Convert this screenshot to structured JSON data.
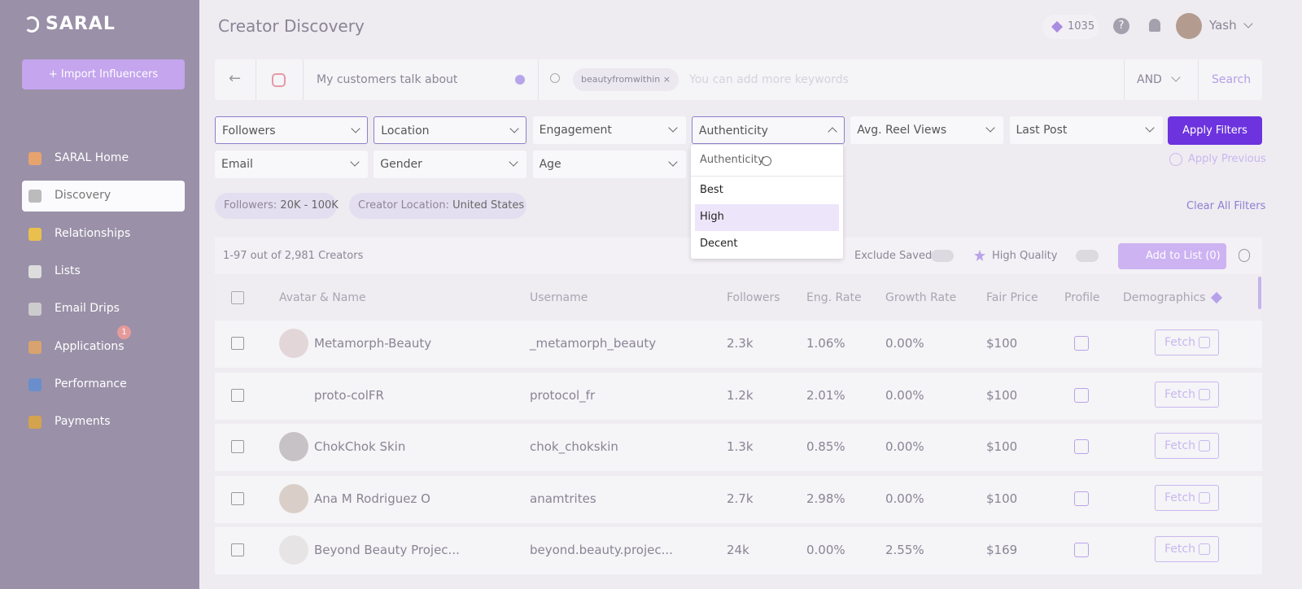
{
  "brand": "SARAL",
  "sidebar": {
    "import_button": "Import Influencers",
    "nav": [
      {
        "label": "SARAL Home"
      },
      {
        "label": "Discovery"
      },
      {
        "label": "Relationships"
      },
      {
        "label": "Lists"
      },
      {
        "label": "Email Drips"
      },
      {
        "label": "Applications",
        "badge": "1"
      },
      {
        "label": "Performance"
      },
      {
        "label": "Payments"
      }
    ]
  },
  "header": {
    "title": "Creator Discovery",
    "credits": "1035",
    "user": "Yash"
  },
  "search": {
    "placeholder": "My customers talk about",
    "keyword": "beautyfromwithin",
    "keyword_placeholder": "You can add more keywords",
    "operator": "AND",
    "button": "Search"
  },
  "filters": {
    "row1": [
      "Followers",
      "Location",
      "Engagement",
      "Authenticity",
      "Avg. Reel Views",
      "Last Post"
    ],
    "row2": [
      "Email",
      "Gender",
      "Age"
    ],
    "apply": "Apply Filters",
    "apply_previous": "Apply Previous"
  },
  "dropdown": {
    "header": "Authenticity",
    "options": [
      "Best",
      "High",
      "Decent"
    ]
  },
  "chips": [
    {
      "label": "Followers:",
      "value": "20K - 100K"
    },
    {
      "label": "Creator Location:",
      "value": "United States"
    }
  ],
  "clear_filters": "Clear All Filters",
  "results": {
    "count": "1-97 out of 2,981 Creators",
    "exclude_saved": "Exclude Saved",
    "high_quality": "High Quality",
    "add_to_list": "Add to List (0)"
  },
  "table": {
    "columns": [
      "Avatar & Name",
      "Username",
      "Followers",
      "Eng. Rate",
      "Growth Rate",
      "Fair Price",
      "Profile",
      "Demographics"
    ],
    "rows": [
      {
        "name": "Metamorph-Beauty",
        "username": "_metamorph_beauty",
        "followers": "2.3k",
        "eng_rate": "1.06%",
        "growth_rate": "0.00%",
        "fair_price": "$100",
        "action": "Fetch"
      },
      {
        "name": "proto-colFR",
        "username": "protocol_fr",
        "followers": "1.2k",
        "eng_rate": "2.01%",
        "growth_rate": "0.00%",
        "fair_price": "$100",
        "action": "Fetch"
      },
      {
        "name": "ChokChok Skin",
        "username": "chok_chokskin",
        "followers": "1.3k",
        "eng_rate": "0.85%",
        "growth_rate": "0.00%",
        "fair_price": "$100",
        "action": "Fetch"
      },
      {
        "name": "Ana M Rodriguez O",
        "username": "anamtrites",
        "followers": "2.7k",
        "eng_rate": "2.98%",
        "growth_rate": "0.00%",
        "fair_price": "$100",
        "action": "Fetch"
      },
      {
        "name": "Beyond Beauty Projec...",
        "username": "beyond.beauty.projec...",
        "followers": "24k",
        "eng_rate": "0.00%",
        "growth_rate": "2.55%",
        "fair_price": "$169",
        "action": "Fetch"
      }
    ]
  }
}
